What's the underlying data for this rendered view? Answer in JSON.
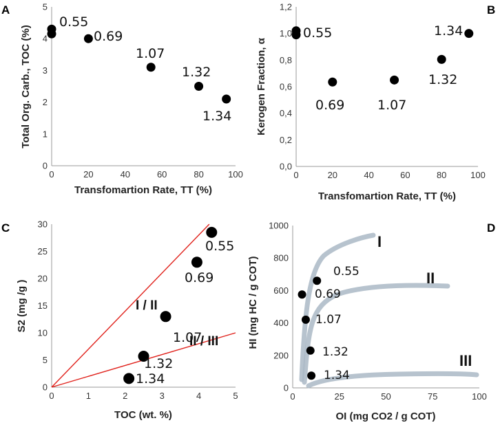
{
  "chart_data": [
    {
      "panel": "A",
      "type": "scatter",
      "xlabel": "Transfomartion Rate, TT (%)",
      "ylabel": "Total Org. Carb., TOC (%)",
      "xlim": [
        0,
        100
      ],
      "ylim": [
        0,
        5
      ],
      "xticks": [
        "0",
        "20",
        "40",
        "60",
        "80",
        "100"
      ],
      "yticks": [
        "0",
        "1",
        "2",
        "3",
        "4",
        "5"
      ],
      "points": [
        {
          "x": 0,
          "y": 4.3,
          "label": "0.55"
        },
        {
          "x": 0,
          "y": 4.15,
          "label": ""
        },
        {
          "x": 20,
          "y": 4.0,
          "label": "0.69"
        },
        {
          "x": 54,
          "y": 3.1,
          "label": "1.07"
        },
        {
          "x": 80,
          "y": 2.5,
          "label": "1.32"
        },
        {
          "x": 95,
          "y": 2.1,
          "label": "1.34"
        }
      ]
    },
    {
      "panel": "B",
      "type": "scatter",
      "xlabel": "Transfomartion Rate, TT (%)",
      "ylabel": "Kerogen Fraction, α",
      "xlim": [
        0,
        100
      ],
      "ylim": [
        0,
        1.2
      ],
      "xticks": [
        "0",
        "20",
        "40",
        "60",
        "80",
        "100"
      ],
      "yticks": [
        "0,0",
        "0,2",
        "0,4",
        "0,6",
        "0,8",
        "1,0",
        "1,2"
      ],
      "points": [
        {
          "x": 0,
          "y": 1.02,
          "label": ""
        },
        {
          "x": 0,
          "y": 0.99,
          "label": "0.55"
        },
        {
          "x": 20,
          "y": 0.635,
          "label": "0.69"
        },
        {
          "x": 54,
          "y": 0.65,
          "label": "1.07"
        },
        {
          "x": 80,
          "y": 0.805,
          "label": "1.32"
        },
        {
          "x": 95,
          "y": 1.0,
          "label": "1.34"
        }
      ]
    },
    {
      "panel": "C",
      "type": "scatter",
      "xlabel": "TOC (wt. %)",
      "ylabel": "S2 (mg /g )",
      "xlim": [
        0,
        5
      ],
      "ylim": [
        0,
        30
      ],
      "xticks": [
        "0",
        "1",
        "2",
        "3",
        "4",
        "5"
      ],
      "yticks": [
        "0",
        "5",
        "10",
        "15",
        "20",
        "25",
        "30"
      ],
      "boundary_lines": [
        {
          "name": "I / II",
          "slope": 7.0
        },
        {
          "name": "II / III",
          "slope": 2.0
        }
      ],
      "points": [
        {
          "x": 4.35,
          "y": 28.5,
          "label": "0.55"
        },
        {
          "x": 3.95,
          "y": 23.0,
          "label": "0.69"
        },
        {
          "x": 3.1,
          "y": 13.0,
          "label": "1.07"
        },
        {
          "x": 2.5,
          "y": 5.7,
          "label": "1.32"
        },
        {
          "x": 2.1,
          "y": 1.6,
          "label": "1.34"
        }
      ]
    },
    {
      "panel": "D",
      "type": "scatter",
      "xlabel": "OI (mg CO2 / g COT)",
      "ylabel": "HI (mg HC / g COT)",
      "xlim": [
        0,
        100
      ],
      "ylim": [
        0,
        1000
      ],
      "xticks": [
        "0",
        "25",
        "50",
        "75",
        "100"
      ],
      "yticks": [
        "0",
        "200",
        "400",
        "600",
        "800",
        "1000"
      ],
      "kerogen_types": [
        "I",
        "II",
        "III"
      ],
      "points": [
        {
          "x": 13,
          "y": 660,
          "label": "0.55"
        },
        {
          "x": 5,
          "y": 575,
          "label": "0.69"
        },
        {
          "x": 7,
          "y": 420,
          "label": "1.07"
        },
        {
          "x": 9.5,
          "y": 230,
          "label": "1.32"
        },
        {
          "x": 10,
          "y": 75,
          "label": "1.34"
        }
      ]
    }
  ]
}
